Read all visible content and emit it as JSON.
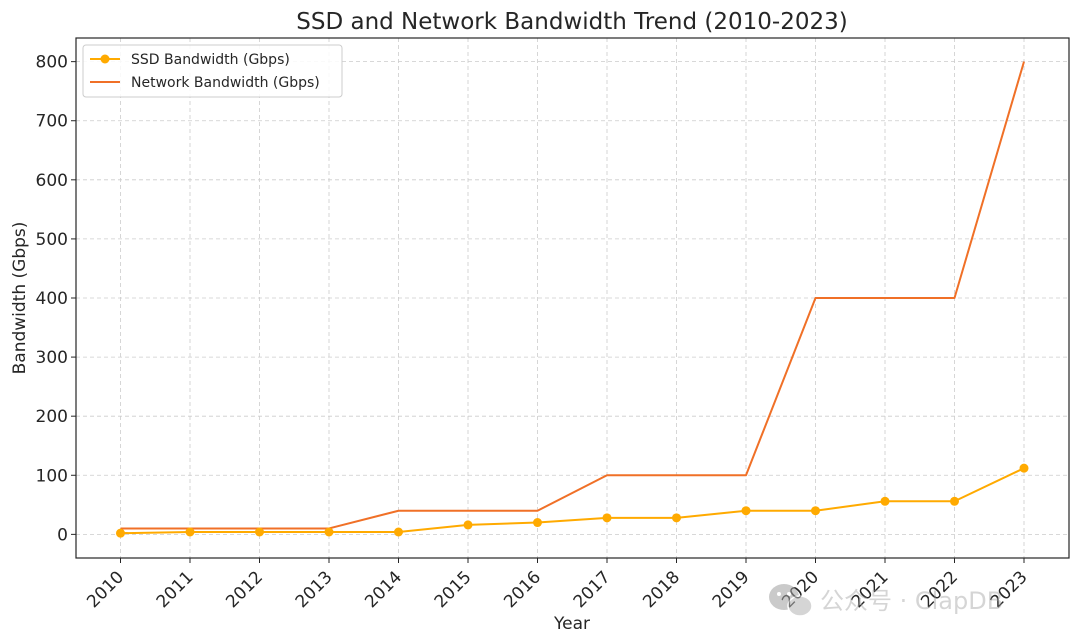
{
  "chart_data": {
    "type": "line",
    "title": "SSD and Network Bandwidth Trend (2010-2023)",
    "xlabel": "Year",
    "ylabel": "Bandwidth (Gbps)",
    "categories": [
      "2010",
      "2011",
      "2012",
      "2013",
      "2014",
      "2015",
      "2016",
      "2017",
      "2018",
      "2019",
      "2020",
      "2021",
      "2022",
      "2023"
    ],
    "yticks": [
      0,
      100,
      200,
      300,
      400,
      500,
      600,
      700,
      800
    ],
    "ylim": [
      -40,
      840
    ],
    "grid": true,
    "legend_position": "top-left",
    "series": [
      {
        "name": "SSD Bandwidth (Gbps)",
        "color": "#FFAA00",
        "markers": true,
        "values": [
          2,
          4,
          4,
          4,
          4,
          16,
          20,
          28,
          28,
          40,
          40,
          56,
          56,
          112
        ]
      },
      {
        "name": "Network Bandwidth (Gbps)",
        "color": "#F07027",
        "markers": false,
        "values": [
          10,
          10,
          10,
          10,
          40,
          40,
          40,
          100,
          100,
          100,
          400,
          400,
          400,
          800
        ]
      }
    ]
  },
  "watermark": {
    "icon": "wechat-icon",
    "text": "公众号 · ClapDB"
  }
}
